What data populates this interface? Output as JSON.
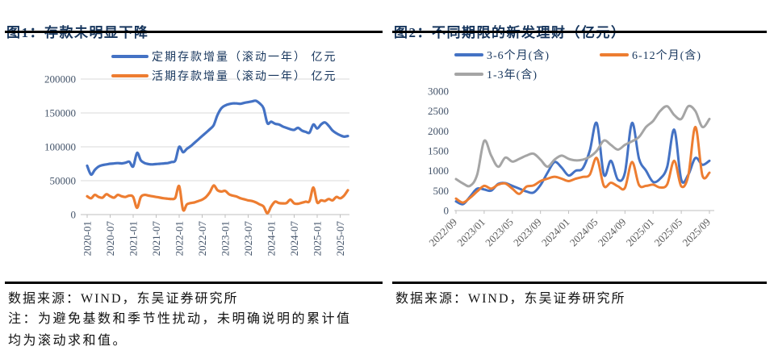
{
  "figure1": {
    "title": "图1：存款未明显下降",
    "source": "数据来源：WIND，东吴证券研究所",
    "note": "注：为避免基数和季节性扰动，未明确说明的累计值均为滚动求和值。"
  },
  "figure2": {
    "title": "图2：不同期限的新发理财（亿元）",
    "source": "数据来源：WIND，东吴证券研究所"
  },
  "colors": {
    "title_navy": "#17365D",
    "series_blue": "#4472C4",
    "series_orange": "#ED7D31",
    "series_gray": "#A5A5A5",
    "grid": "#D9D9D9",
    "axis": "#BFBFBF",
    "axis_label_navy": "#44546A",
    "axis_label_gray": "#595959"
  },
  "chart_data": [
    {
      "type": "line",
      "title": "存款未明显下降",
      "x_start": "2020-01",
      "x_unit": "month",
      "x_tick_every": 6,
      "x_tick_labels": [
        "2020-01",
        "2020-07",
        "2021-01",
        "2021-07",
        "2022-01",
        "2022-07",
        "2023-01",
        "2023-07",
        "2024-01",
        "2024-07",
        "2025-01",
        "2025-07"
      ],
      "ylim": [
        0,
        200000
      ],
      "y_ticks": [
        0,
        50000,
        100000,
        150000,
        200000
      ],
      "grid": true,
      "legend_position": "top",
      "series": [
        {
          "name": "定期存款增量（滚动一年） 亿元",
          "color": "#4472C4",
          "values": [
            72000,
            59000,
            66000,
            71000,
            73000,
            74000,
            75000,
            75500,
            76000,
            75500,
            76500,
            78000,
            71000,
            91000,
            80000,
            76000,
            74500,
            74000,
            74500,
            75000,
            75500,
            76000,
            77500,
            80000,
            100000,
            92000,
            97000,
            101000,
            106000,
            111000,
            116000,
            121000,
            126000,
            132000,
            147000,
            157000,
            161000,
            163000,
            164000,
            164000,
            163500,
            165000,
            166000,
            167000,
            168000,
            164000,
            157000,
            135000,
            137000,
            134000,
            133000,
            130000,
            128000,
            126000,
            125000,
            128000,
            124000,
            122000,
            121000,
            133000,
            127000,
            133000,
            136000,
            131000,
            124000,
            120000,
            117000,
            115000,
            116000
          ]
        },
        {
          "name": "活期存款增量（滚动一年） 亿元",
          "color": "#ED7D31",
          "values": [
            27000,
            24000,
            29000,
            26000,
            25000,
            30000,
            27000,
            25000,
            29000,
            27000,
            26000,
            28000,
            26000,
            10000,
            26000,
            29000,
            28000,
            27000,
            26000,
            25000,
            24000,
            23500,
            23000,
            25000,
            42000,
            7000,
            15000,
            17000,
            18000,
            20000,
            22000,
            26000,
            33000,
            43000,
            36000,
            34000,
            35000,
            30000,
            28000,
            26500,
            24000,
            22500,
            21000,
            20000,
            18000,
            15000,
            12000,
            2000,
            12000,
            19000,
            17000,
            16500,
            17000,
            22000,
            16500,
            16000,
            17500,
            19000,
            20000,
            40000,
            18000,
            21000,
            20000,
            23000,
            21000,
            26000,
            24000,
            28000,
            36000
          ]
        }
      ]
    },
    {
      "type": "line",
      "title": "不同期限的新发理财（亿元）",
      "x_start": "2022/09",
      "x_unit": "month",
      "x_tick_every": 4,
      "x_tick_labels": [
        "2022/09",
        "2023/01",
        "2023/05",
        "2023/09",
        "2024/01",
        "2024/05",
        "2024/09",
        "2025/01",
        "2025/05",
        "2025/09"
      ],
      "ylim": [
        0,
        3000
      ],
      "y_ticks": [
        0,
        500,
        1000,
        1500,
        2000,
        2500,
        3000
      ],
      "grid": false,
      "legend_position": "top",
      "series": [
        {
          "name": "3-6个月(含)",
          "color": "#4472C4",
          "values": [
            230,
            160,
            350,
            550,
            530,
            500,
            670,
            690,
            620,
            550,
            480,
            450,
            640,
            950,
            1220,
            1080,
            880,
            1000,
            1060,
            1500,
            2200,
            900,
            1250,
            775,
            950,
            2200,
            1300,
            1000,
            720,
            800,
            1100,
            2030,
            775,
            900,
            1320,
            1150,
            1250
          ]
        },
        {
          "name": "6-12个月(含)",
          "color": "#ED7D31",
          "values": [
            300,
            200,
            320,
            480,
            620,
            550,
            650,
            680,
            550,
            420,
            600,
            630,
            740,
            800,
            850,
            800,
            740,
            800,
            845,
            900,
            1320,
            620,
            700,
            610,
            570,
            1220,
            640,
            620,
            650,
            580,
            660,
            1250,
            610,
            880,
            2100,
            880,
            950
          ]
        },
        {
          "name": "1-3年(含)",
          "color": "#A5A5A5",
          "values": [
            790,
            680,
            620,
            900,
            1750,
            1380,
            1100,
            1330,
            1230,
            1300,
            1380,
            1430,
            1280,
            1100,
            1280,
            1380,
            1300,
            1260,
            1280,
            1350,
            1500,
            1760,
            1650,
            1530,
            1650,
            1740,
            1850,
            2100,
            2250,
            2500,
            2620,
            2400,
            2300,
            2620,
            2500,
            2100,
            2300
          ]
        }
      ]
    }
  ]
}
